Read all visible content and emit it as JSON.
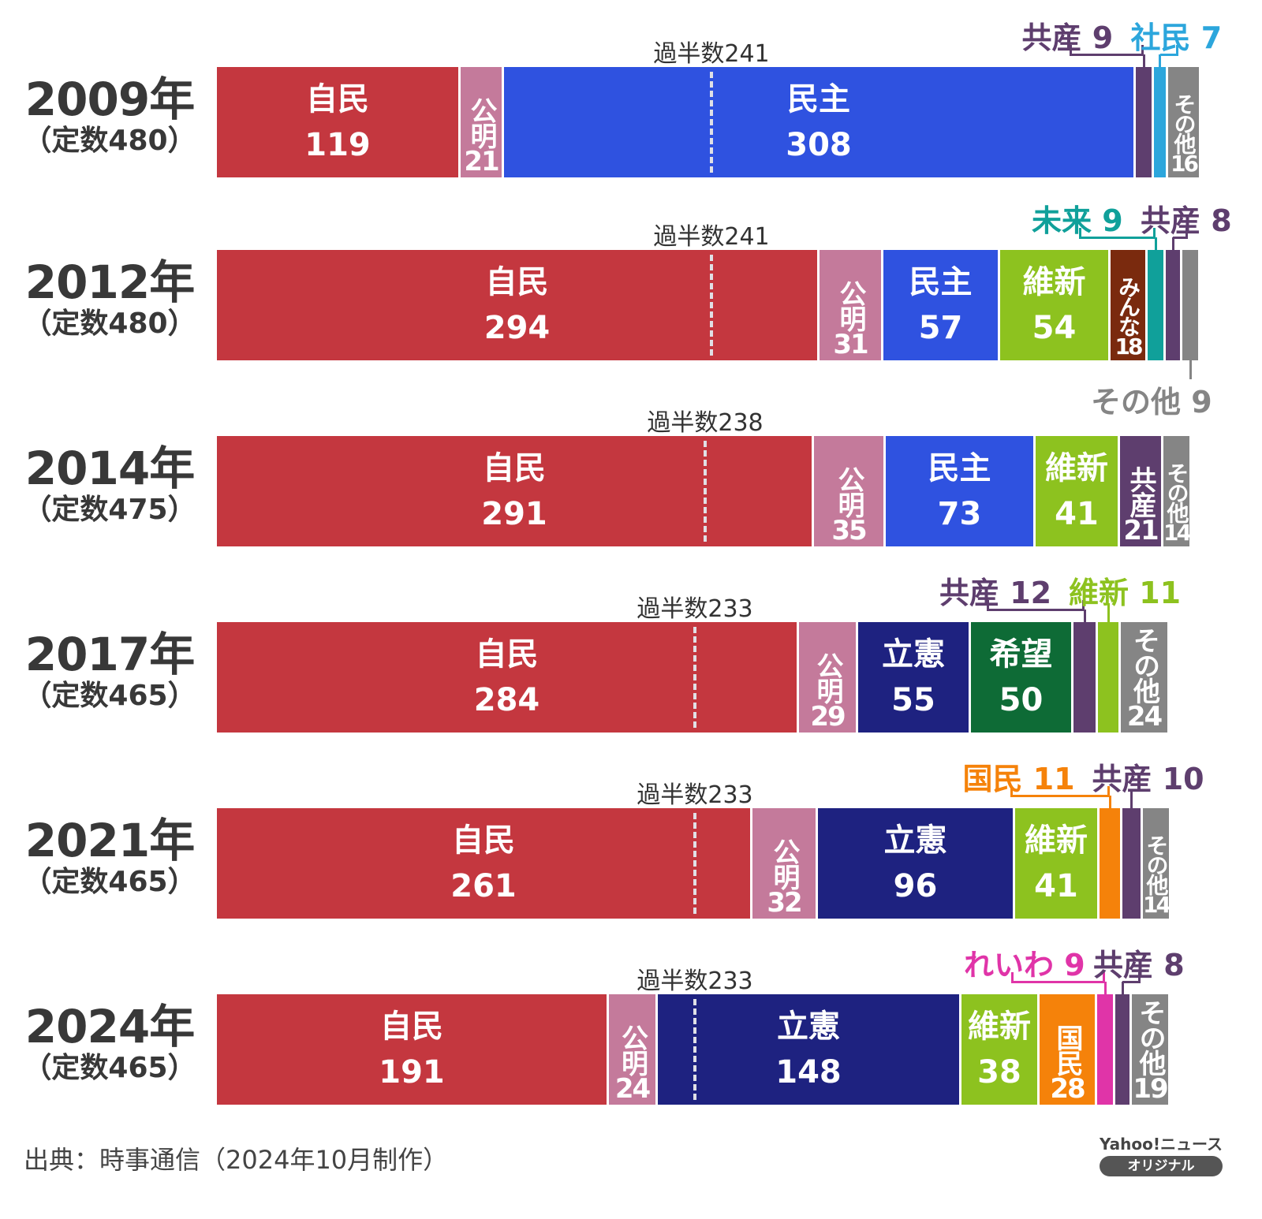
{
  "chart_data": {
    "type": "bar",
    "orientation": "horizontal-stacked",
    "title": "",
    "majority_prefix": "過半数",
    "colors": {
      "自民": "#c4373f",
      "公明": "#c47a9b",
      "民主": "#2f52e0",
      "立憲": "#1e2280",
      "維新": "#8dc21f",
      "希望": "#0e6b36",
      "みんな": "#7a2a0e",
      "未来": "#10a09a",
      "共産": "#5e3e6e",
      "社民": "#2ca6dc",
      "国民": "#f5820a",
      "れいわ": "#e034a8",
      "その他": "#858585"
    },
    "elections": [
      {
        "year": "2009年",
        "total_label": "（定数480）",
        "total": 480,
        "majority": 241,
        "majority_label": "過半数241",
        "segments": [
          {
            "party": "自民",
            "value": 119,
            "label": "inside"
          },
          {
            "party": "公明",
            "value": 21,
            "label": "vertical"
          },
          {
            "party": "民主",
            "value": 308,
            "label": "inside"
          },
          {
            "party": "共産",
            "value": 9,
            "label": "callout",
            "callout": "共産 9"
          },
          {
            "party": "社民",
            "value": 7,
            "label": "callout",
            "callout": "社民 7"
          },
          {
            "party": "その他",
            "value": 16,
            "label": "vertical"
          }
        ]
      },
      {
        "year": "2012年",
        "total_label": "（定数480）",
        "total": 480,
        "majority": 241,
        "majority_label": "過半数241",
        "segments": [
          {
            "party": "自民",
            "value": 294,
            "label": "inside"
          },
          {
            "party": "公明",
            "value": 31,
            "label": "vertical"
          },
          {
            "party": "民主",
            "value": 57,
            "label": "inside"
          },
          {
            "party": "維新",
            "value": 54,
            "label": "inside"
          },
          {
            "party": "みんな",
            "value": 18,
            "label": "vertical"
          },
          {
            "party": "未来",
            "value": 9,
            "label": "callout",
            "callout": "未来 9"
          },
          {
            "party": "共産",
            "value": 8,
            "label": "callout",
            "callout": "共産 8"
          },
          {
            "party": "その他",
            "value": 9,
            "label": "callout-below",
            "callout": "その他 9"
          }
        ]
      },
      {
        "year": "2014年",
        "total_label": "（定数475）",
        "total": 475,
        "majority": 238,
        "majority_label": "過半数238",
        "segments": [
          {
            "party": "自民",
            "value": 291,
            "label": "inside"
          },
          {
            "party": "公明",
            "value": 35,
            "label": "vertical"
          },
          {
            "party": "民主",
            "value": 73,
            "label": "inside"
          },
          {
            "party": "維新",
            "value": 41,
            "label": "inside"
          },
          {
            "party": "共産",
            "value": 21,
            "label": "vertical"
          },
          {
            "party": "その他",
            "value": 14,
            "label": "vertical"
          }
        ]
      },
      {
        "year": "2017年",
        "total_label": "（定数465）",
        "total": 465,
        "majority": 233,
        "majority_label": "過半数233",
        "segments": [
          {
            "party": "自民",
            "value": 284,
            "label": "inside"
          },
          {
            "party": "公明",
            "value": 29,
            "label": "vertical"
          },
          {
            "party": "立憲",
            "value": 55,
            "label": "inside"
          },
          {
            "party": "希望",
            "value": 50,
            "label": "inside"
          },
          {
            "party": "共産",
            "value": 12,
            "label": "callout",
            "callout": "共産 12"
          },
          {
            "party": "維新",
            "value": 11,
            "label": "callout",
            "callout": "維新 11"
          },
          {
            "party": "その他",
            "value": 24,
            "label": "vertical"
          }
        ]
      },
      {
        "year": "2021年",
        "total_label": "（定数465）",
        "total": 465,
        "majority": 233,
        "majority_label": "過半数233",
        "segments": [
          {
            "party": "自民",
            "value": 261,
            "label": "inside"
          },
          {
            "party": "公明",
            "value": 32,
            "label": "vertical"
          },
          {
            "party": "立憲",
            "value": 96,
            "label": "inside"
          },
          {
            "party": "維新",
            "value": 41,
            "label": "inside"
          },
          {
            "party": "国民",
            "value": 11,
            "label": "callout",
            "callout": "国民 11"
          },
          {
            "party": "共産",
            "value": 10,
            "label": "callout",
            "callout": "共産 10"
          },
          {
            "party": "その他",
            "value": 14,
            "label": "vertical"
          }
        ]
      },
      {
        "year": "2024年",
        "total_label": "（定数465）",
        "total": 465,
        "majority": 233,
        "majority_label": "過半数233",
        "segments": [
          {
            "party": "自民",
            "value": 191,
            "label": "inside"
          },
          {
            "party": "公明",
            "value": 24,
            "label": "vertical"
          },
          {
            "party": "立憲",
            "value": 148,
            "label": "inside"
          },
          {
            "party": "維新",
            "value": 38,
            "label": "inside"
          },
          {
            "party": "国民",
            "value": 28,
            "label": "vertical"
          },
          {
            "party": "れいわ",
            "value": 9,
            "label": "callout",
            "callout": "れいわ 9"
          },
          {
            "party": "共産",
            "value": 8,
            "label": "callout",
            "callout": "共産 8"
          },
          {
            "party": "その他",
            "value": 19,
            "label": "vertical"
          }
        ]
      }
    ]
  },
  "footer": {
    "source": "出典：時事通信（2024年10月制作）"
  },
  "logo": {
    "brand": "Yahoo!ニュース",
    "badge": "オリジナル"
  }
}
